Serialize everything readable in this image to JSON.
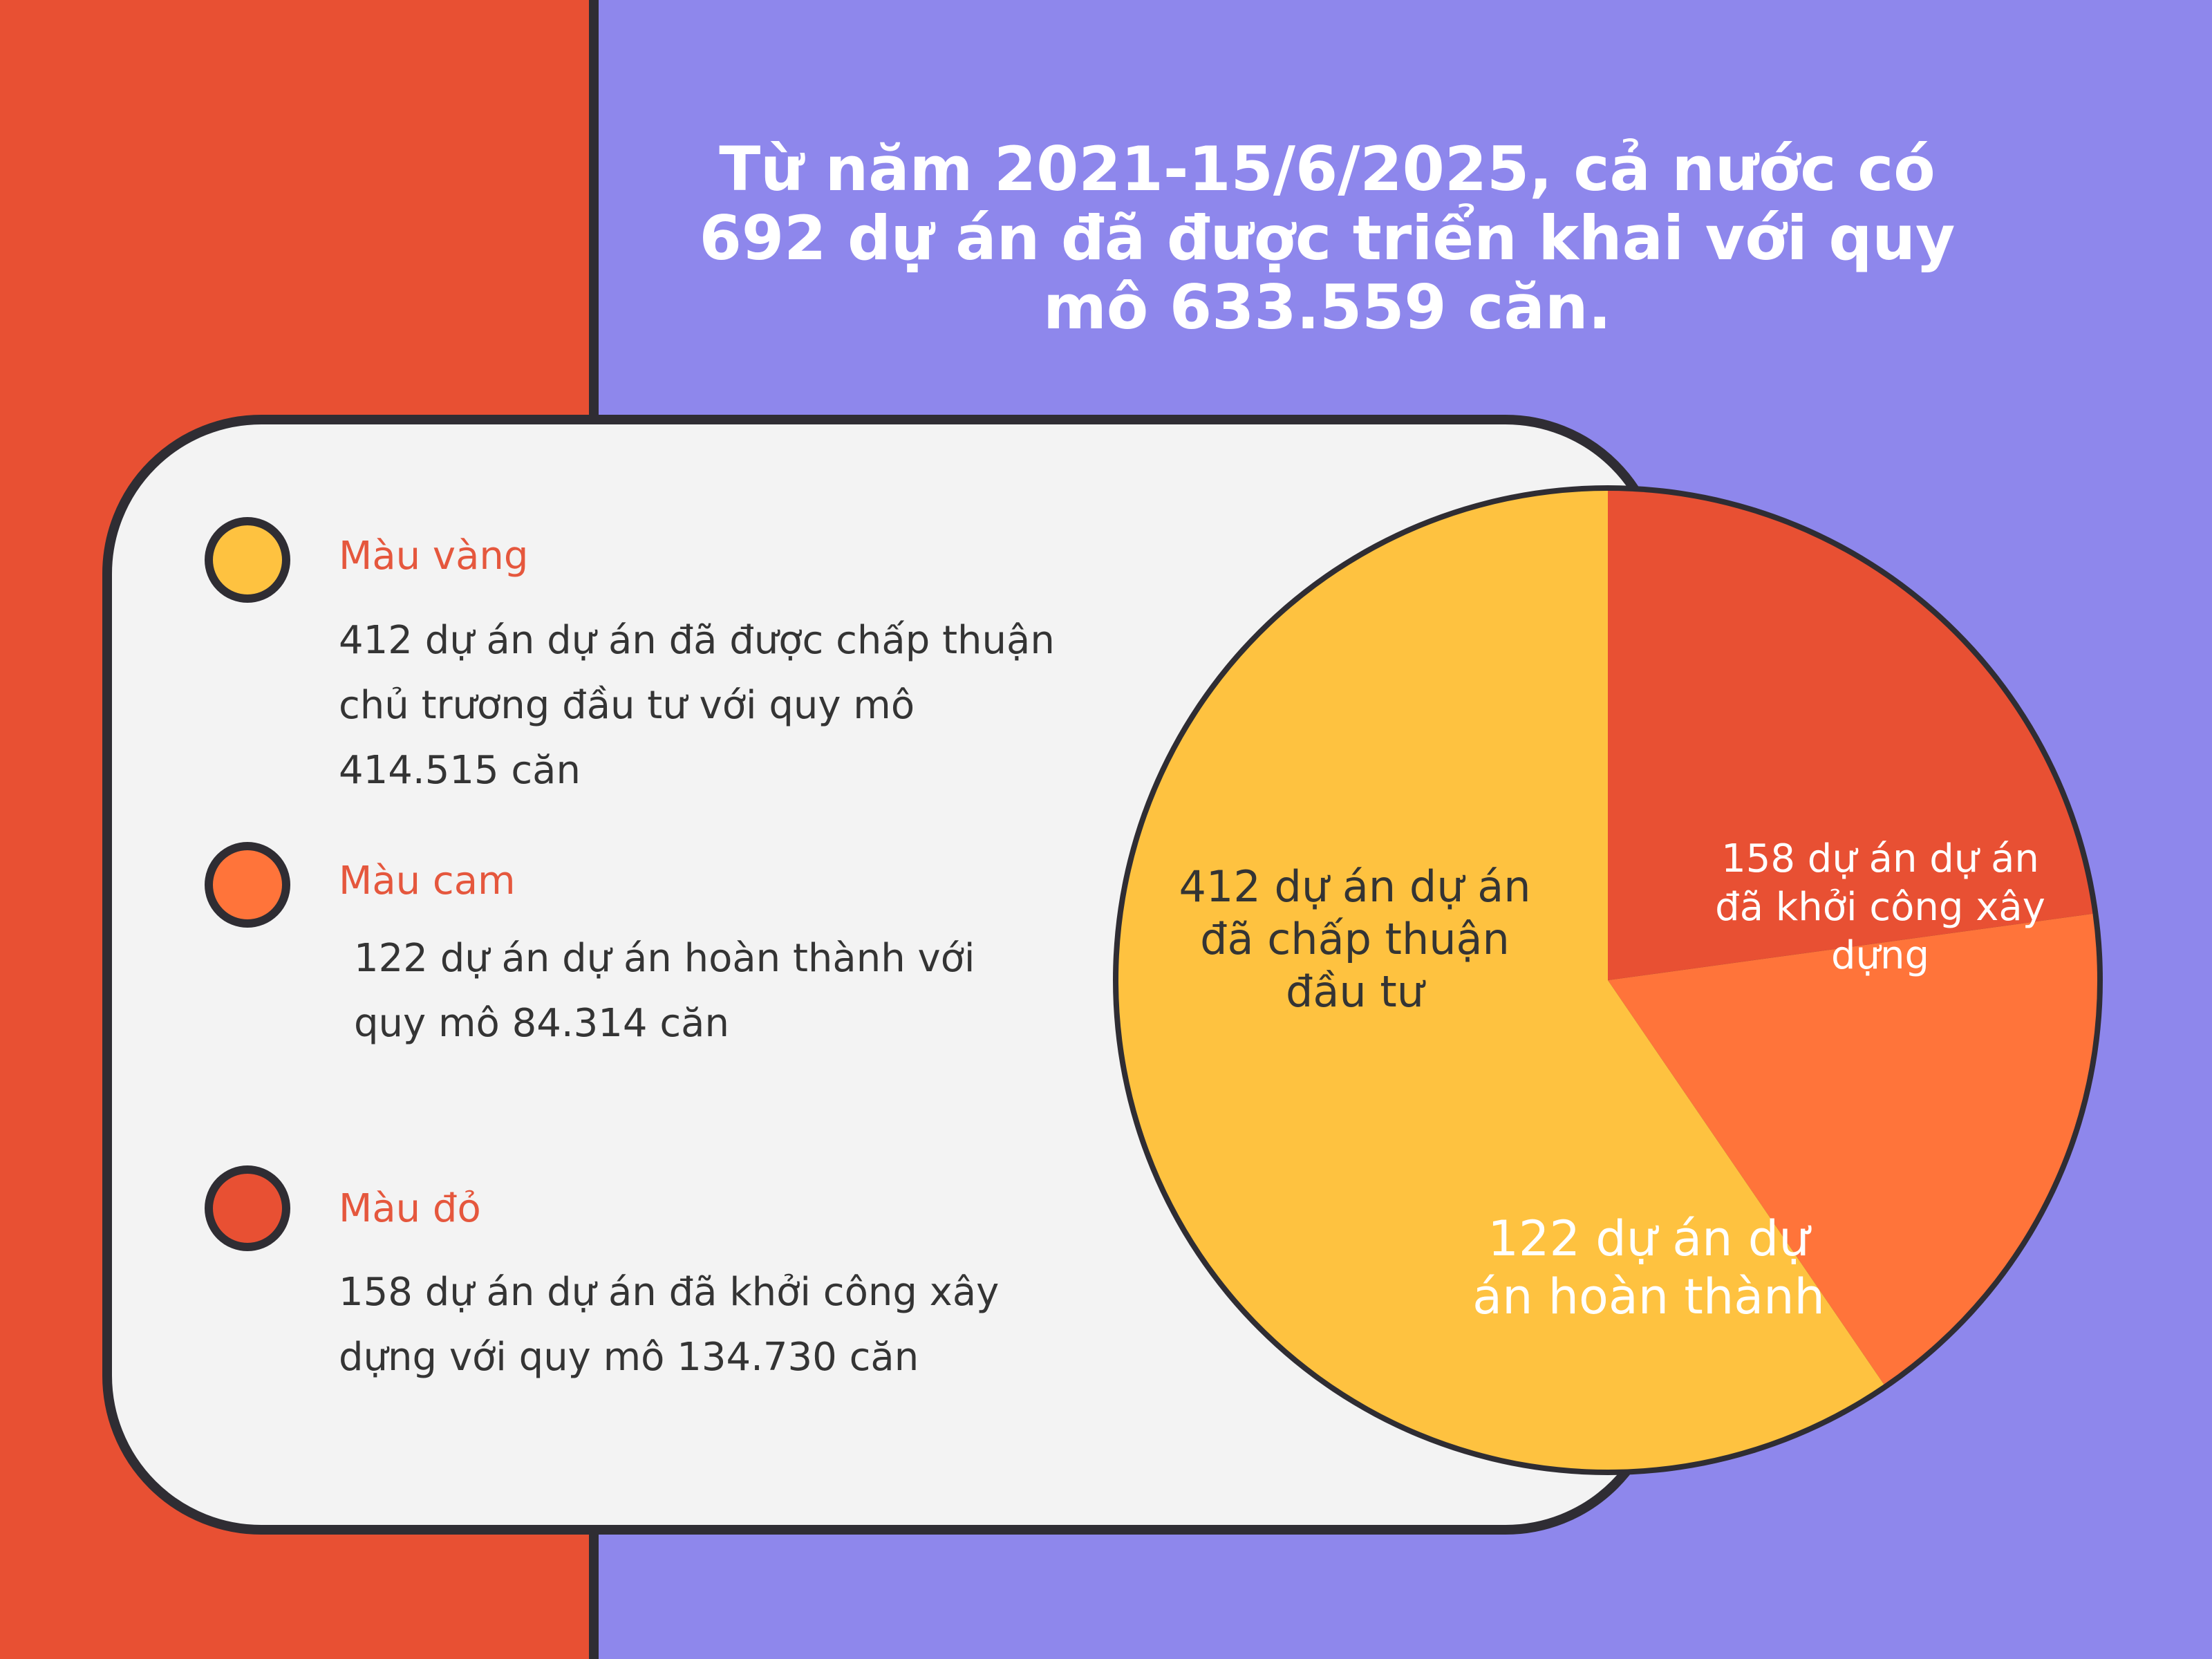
{
  "headline": {
    "line1": "Từ năm 2021-15/6/2025, cả nước có",
    "line2": "692 dự án đã được triển khai với quy",
    "line3": "mô 633.559 căn."
  },
  "legend": [
    {
      "title": "Màu vàng",
      "lines": [
        "412 dự án dự án đã được chấp thuận",
        "chủ trương đầu tư với quy mô",
        "414.515 căn"
      ],
      "color": "#fec240"
    },
    {
      "title": "Màu cam",
      "lines": [
        "122 dự án dự án hoàn thành với",
        "quy mô 84.314 căn"
      ],
      "color": "#ff743a"
    },
    {
      "title": "Màu đỏ",
      "lines": [
        "158 dự án dự án đã khởi công xây",
        "dựng với quy mô 134.730 căn"
      ],
      "color": "#e85033"
    }
  ],
  "colors": {
    "yellow": "#fec240",
    "orange": "#ff743a",
    "red": "#e85033",
    "outline": "#2f2d33",
    "background": "#8e87ec",
    "card": "#f3f3f3"
  },
  "chart_data": {
    "type": "pie",
    "title": "",
    "slices": [
      {
        "value": 158,
        "color": "#e85033",
        "label_lines": [
          "158 dự án dự án",
          "đã khởi công xây",
          "dựng"
        ]
      },
      {
        "value": 122,
        "color": "#ff743a",
        "label_lines": [
          "122 dự án dự",
          "án hoàn thành"
        ]
      },
      {
        "value": 412,
        "color": "#fec240",
        "label_lines": [
          "412 dự án dự án",
          "đã chấp thuận",
          "đầu tư"
        ]
      }
    ]
  }
}
